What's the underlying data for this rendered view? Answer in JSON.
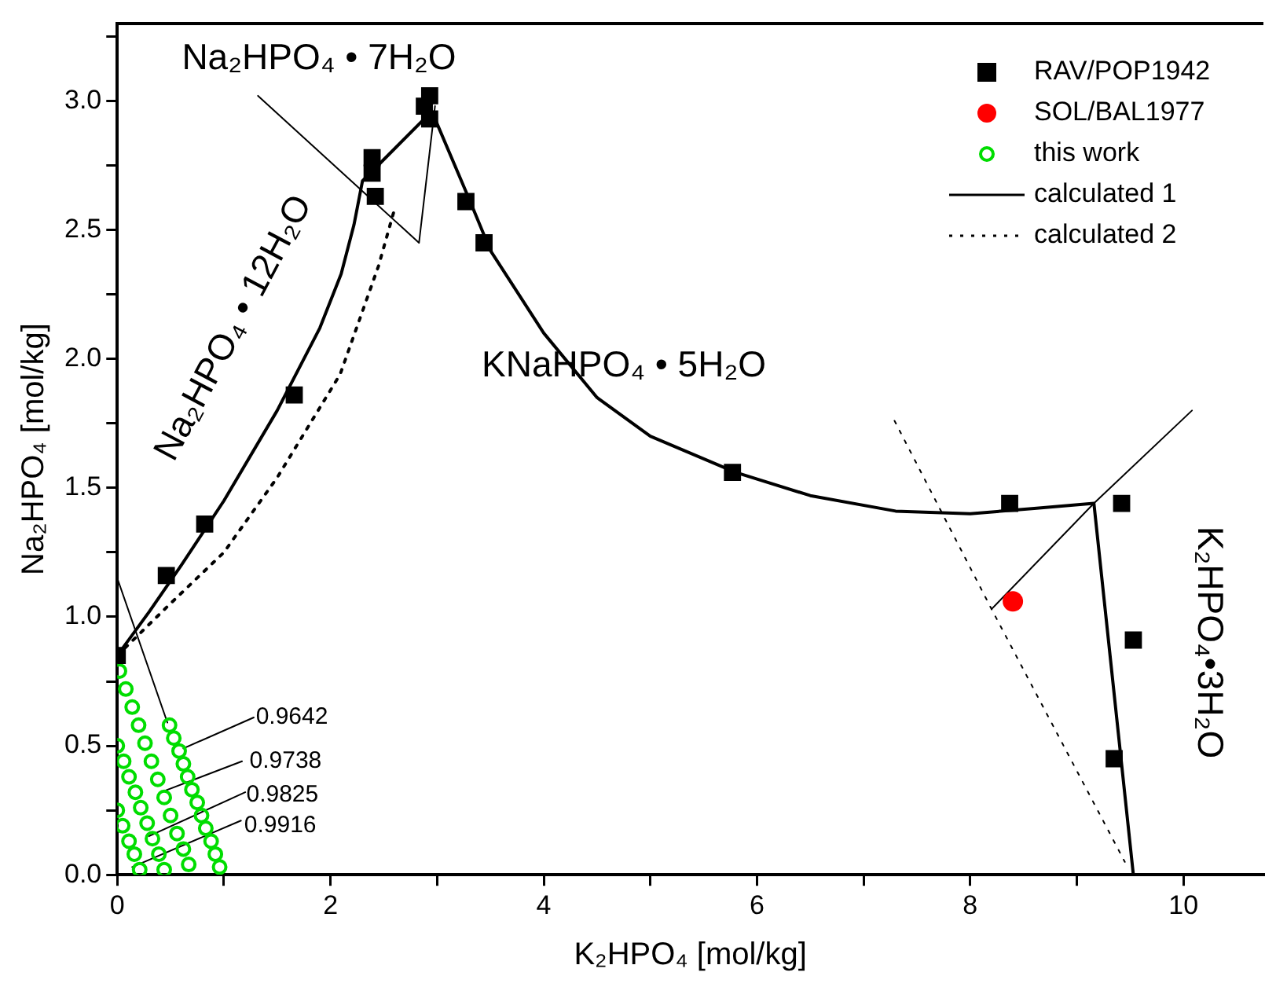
{
  "chart_data": {
    "type": "scatter",
    "xlabel": "K₂HPO₄ [mol/kg]",
    "ylabel": "Na₂HPO₄ [mol/kg]",
    "xlim": [
      0,
      10.75
    ],
    "ylim": [
      0,
      3.3
    ],
    "xticks": [
      0,
      {
        "value": 1,
        "label": null
      },
      2,
      {
        "value": 3,
        "label": null
      },
      4,
      {
        "value": 5,
        "label": null
      },
      6,
      {
        "value": 7,
        "label": null
      },
      8,
      {
        "value": 9,
        "label": null
      },
      10
    ],
    "yticks": [
      {
        "value": 0,
        "label": "0.0"
      },
      {
        "value": 0.25,
        "label": null
      },
      0.5,
      {
        "value": 0.75,
        "label": null
      },
      {
        "value": 1,
        "label": "1.0"
      },
      {
        "value": 1.25,
        "label": null
      },
      1.5,
      {
        "value": 1.75,
        "label": null
      },
      {
        "value": 2,
        "label": "2.0"
      },
      {
        "value": 2.25,
        "label": null
      },
      2.5,
      {
        "value": 2.75,
        "label": null
      },
      {
        "value": 3,
        "label": "3.0"
      },
      {
        "value": 3.25,
        "label": null
      }
    ],
    "grid": false,
    "legend": "top right",
    "series": [
      {
        "name": "RAV/POP1942",
        "marker": "square",
        "color": "#000000",
        "x": [
          0,
          0.46,
          0.82,
          1.66,
          2.39,
          2.39,
          2.42,
          2.88,
          2.93,
          2.93,
          3.27,
          3.44,
          5.77,
          8.37,
          9.42,
          9.53,
          9.35
        ],
        "values": [
          0.85,
          1.16,
          1.36,
          1.86,
          2.78,
          2.72,
          2.63,
          2.98,
          3.02,
          2.93,
          2.61,
          2.45,
          1.56,
          1.44,
          1.44,
          0.91,
          0.45
        ]
      },
      {
        "name": "SOL/BAL1977",
        "marker": "circle",
        "color": "#ff0000",
        "x": [
          8.4
        ],
        "values": [
          1.06
        ]
      },
      {
        "name": "this work",
        "marker": "circle",
        "color": "#00dd00",
        "x": [
          0.49,
          0.53,
          0.58,
          0.62,
          0.66,
          0.7,
          0.75,
          0.79,
          0.83,
          0.88,
          0.92,
          0.96,
          0.02,
          0.08,
          0.14,
          0.2,
          0.26,
          0.32,
          0.38,
          0.44,
          0.5,
          0.56,
          0.62,
          0.67,
          0,
          0.06,
          0.11,
          0.17,
          0.22,
          0.28,
          0.33,
          0.39,
          0.44,
          0,
          0.05,
          0.11,
          0.16,
          0.21
        ],
        "values": [
          0.58,
          0.53,
          0.48,
          0.43,
          0.38,
          0.33,
          0.28,
          0.23,
          0.18,
          0.13,
          0.08,
          0.03,
          0.79,
          0.72,
          0.65,
          0.58,
          0.51,
          0.44,
          0.37,
          0.3,
          0.23,
          0.16,
          0.1,
          0.04,
          0.5,
          0.44,
          0.38,
          0.32,
          0.26,
          0.2,
          0.14,
          0.08,
          0.02,
          0.25,
          0.19,
          0.13,
          0.08,
          0.02
        ]
      },
      {
        "name": "calculated 1",
        "type": "line",
        "marker": "none",
        "line_style": "solid",
        "color": "#000000",
        "x": [
          0,
          0.3,
          0.6,
          1.0,
          1.5,
          1.9,
          2.1,
          2.22,
          2.3,
          2.95,
          3.3,
          3.5,
          4.0,
          4.5,
          5.0,
          5.8,
          6.5,
          7.3,
          8.0,
          8.6,
          9.16,
          9.53
        ],
        "values": [
          0.85,
          1.02,
          1.2,
          1.45,
          1.8,
          2.12,
          2.33,
          2.52,
          2.69,
          2.96,
          2.62,
          2.42,
          2.1,
          1.85,
          1.7,
          1.56,
          1.47,
          1.41,
          1.4,
          1.42,
          1.44,
          0
        ]
      },
      {
        "name": "calculated 2",
        "type": "line",
        "marker": "none",
        "line_style": "dotted",
        "color": "#000000",
        "x": [
          0,
          0.47,
          1.0,
          1.5,
          2.09,
          2.45,
          2.6
        ],
        "values": [
          0.85,
          1.04,
          1.25,
          1.54,
          1.94,
          2.36,
          2.58
        ]
      },
      {
        "type": "line",
        "marker": "none",
        "line_style": "dotted",
        "color": "#000000",
        "x": [
          7.29,
          8.2,
          9.45
        ],
        "values": [
          1.76,
          1.03,
          0.05
        ]
      },
      {
        "type": "line",
        "marker": "none",
        "line_style": "solid",
        "color": "#000000",
        "x": [
          1.32,
          2.83,
          2.98
        ],
        "values": [
          3.02,
          2.45,
          2.98
        ]
      },
      {
        "type": "line",
        "marker": "none",
        "line_style": "solid",
        "color": "#000000",
        "x": [
          0,
          0.47
        ],
        "values": [
          1.15,
          0.59
        ]
      },
      {
        "type": "line",
        "marker": "none",
        "line_style": "solid",
        "color": "#000000",
        "x": [
          8.2,
          9.16,
          10.08
        ],
        "values": [
          1.03,
          1.44,
          1.8
        ]
      },
      {
        "type": "line",
        "marker": "none",
        "line_style": "solid",
        "color": "#000000",
        "x": [
          1.28,
          0.62
        ],
        "values": [
          0.61,
          0.49
        ]
      },
      {
        "type": "line",
        "marker": "none",
        "line_style": "solid",
        "color": "#000000",
        "x": [
          1.17,
          0.41
        ],
        "values": [
          0.44,
          0.32
        ]
      },
      {
        "type": "line",
        "marker": "none",
        "line_style": "solid",
        "color": "#000000",
        "x": [
          1.2,
          0.3
        ],
        "values": [
          0.32,
          0.15
        ]
      },
      {
        "type": "line",
        "marker": "none",
        "line_style": "solid",
        "color": "#000000",
        "x": [
          1.16,
          0.14
        ],
        "values": [
          0.21,
          0.03
        ]
      }
    ],
    "annotations": [
      "Na₂HPO₄ • 7H₂O",
      "Na₂HPO₄ • 12H₂O",
      "KNaHPO₄ • 5H₂O",
      "K₂HPO₄•3H₂O",
      {
        "text": "0.9642",
        "x": 1.3,
        "y": 0.61
      },
      {
        "text": "0.9738",
        "x": 1.24,
        "y": 0.44
      },
      {
        "text": "0.9825",
        "x": 1.21,
        "y": 0.31
      },
      {
        "text": "0.9916",
        "x": 1.19,
        "y": 0.19
      }
    ]
  }
}
